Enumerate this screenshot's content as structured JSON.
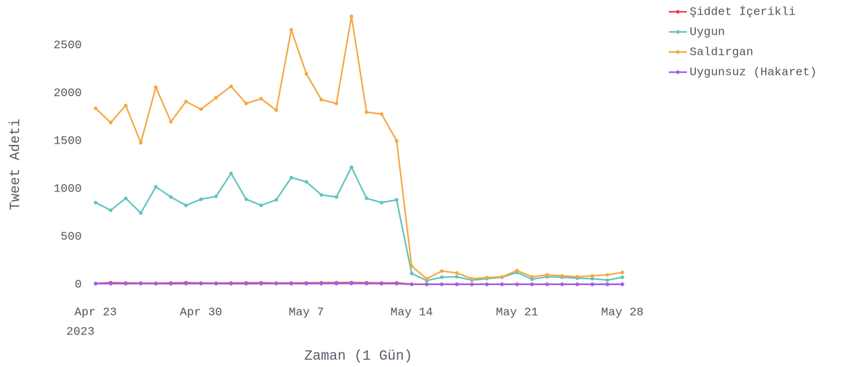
{
  "chart_data": {
    "type": "line",
    "y_label": "Tweet Adeti",
    "x_label": "Zaman (1 Gün)",
    "x": [
      "2023-04-23",
      "2023-04-24",
      "2023-04-25",
      "2023-04-26",
      "2023-04-27",
      "2023-04-28",
      "2023-04-29",
      "2023-04-30",
      "2023-05-01",
      "2023-05-02",
      "2023-05-03",
      "2023-05-04",
      "2023-05-05",
      "2023-05-06",
      "2023-05-07",
      "2023-05-08",
      "2023-05-09",
      "2023-05-10",
      "2023-05-11",
      "2023-05-12",
      "2023-05-13",
      "2023-05-14",
      "2023-05-15",
      "2023-05-16",
      "2023-05-17",
      "2023-05-18",
      "2023-05-19",
      "2023-05-20",
      "2023-05-21",
      "2023-05-22",
      "2023-05-23",
      "2023-05-24",
      "2023-05-25",
      "2023-05-26",
      "2023-05-27",
      "2023-05-28"
    ],
    "series": [
      {
        "name": "Şiddet İçerikli",
        "color": "#e5404f",
        "values": [
          10,
          18,
          15,
          14,
          12,
          15,
          18,
          14,
          13,
          15,
          16,
          17,
          14,
          15,
          16,
          17,
          18,
          19,
          17,
          15,
          16,
          3,
          2,
          2,
          2,
          2,
          2,
          2,
          2,
          2,
          2,
          2,
          2,
          2,
          2,
          2
        ]
      },
      {
        "name": "Uygun",
        "color": "#5ec4bf",
        "values": [
          855,
          775,
          900,
          746,
          1020,
          913,
          826,
          890,
          920,
          1160,
          890,
          826,
          884,
          1116,
          1072,
          935,
          913,
          1225,
          900,
          855,
          884,
          115,
          40,
          75,
          80,
          45,
          60,
          75,
          125,
          55,
          80,
          75,
          65,
          60,
          45,
          75
        ]
      },
      {
        "name": "Saldırgan",
        "color": "#f5a742",
        "values": [
          1840,
          1690,
          1870,
          1480,
          2060,
          1700,
          1910,
          1830,
          1950,
          2070,
          1890,
          1940,
          1820,
          2660,
          2200,
          1930,
          1890,
          2800,
          1800,
          1780,
          1500,
          190,
          60,
          140,
          120,
          60,
          72,
          80,
          145,
          80,
          100,
          90,
          80,
          90,
          100,
          125
        ]
      },
      {
        "name": "Uygunsuz (Hakaret)",
        "color": "#a35ee8",
        "values": [
          8,
          8,
          7,
          9,
          8,
          7,
          8,
          9,
          8,
          8,
          7,
          8,
          9,
          8,
          8,
          9,
          9,
          10,
          9,
          8,
          8,
          1,
          1,
          1,
          1,
          1,
          1,
          1,
          1,
          1,
          1,
          1,
          1,
          1,
          1,
          1
        ]
      }
    ],
    "xlim": [
      "2023-04-23",
      "2023-05-28"
    ],
    "xticks": [
      {
        "value": "2023-04-23",
        "label": "Apr 23"
      },
      {
        "value": "2023-04-30",
        "label": "Apr 30"
      },
      {
        "value": "2023-05-07",
        "label": "May 7"
      },
      {
        "value": "2023-05-14",
        "label": "May 14"
      },
      {
        "value": "2023-05-21",
        "label": "May 21"
      },
      {
        "value": "2023-05-28",
        "label": "May 28"
      }
    ],
    "x_year_label": "2023",
    "ylim": [
      -100,
      2900
    ],
    "yticks": [
      0,
      500,
      1000,
      1500,
      2000,
      2500
    ],
    "grid": false,
    "legend": "top-right"
  }
}
